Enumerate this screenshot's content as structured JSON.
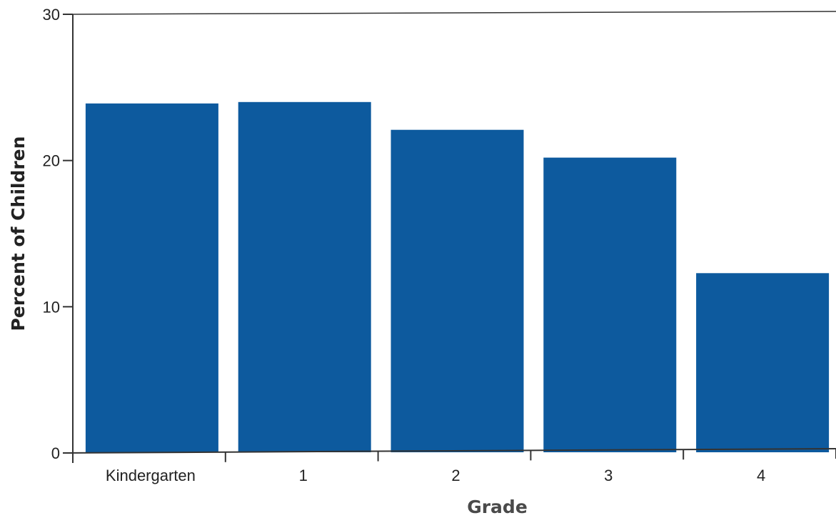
{
  "chart_data": {
    "type": "bar",
    "title": "",
    "xlabel": "Grade",
    "ylabel": "Percent of Children",
    "categories": [
      "Kindergarten",
      "1",
      "2",
      "3",
      "4"
    ],
    "values": [
      23.9,
      24.0,
      22.1,
      20.2,
      12.3
    ],
    "ylim": [
      0,
      30
    ],
    "yticks": [
      0,
      10,
      20,
      30
    ],
    "ytick_labels": [
      "0",
      "10",
      "20",
      "30"
    ],
    "grid": false,
    "bar_color": "#0d5a9e"
  }
}
